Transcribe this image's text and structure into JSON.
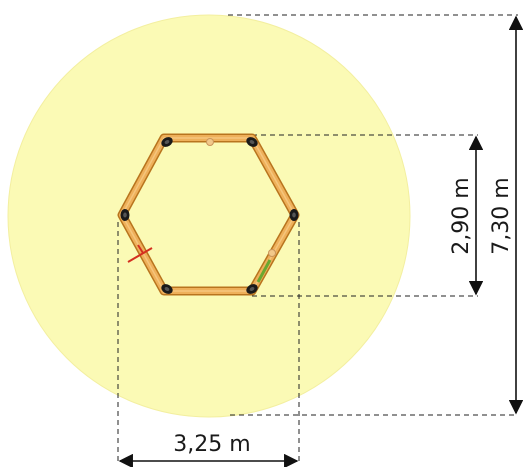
{
  "dimensions": {
    "width_label": "3,25 m",
    "height_small_label": "2,90 m",
    "height_large_label": "7,30 m"
  },
  "colors": {
    "safety_zone": "#fbfab5",
    "timber": "#e9a64a",
    "timber_edge": "#b8741e",
    "bolt": "#1a1a1a",
    "dimension_line": "#111111"
  },
  "icons": {
    "red_marker": "red-cross-marker-icon",
    "green_marker": "green-stick-marker-icon"
  }
}
